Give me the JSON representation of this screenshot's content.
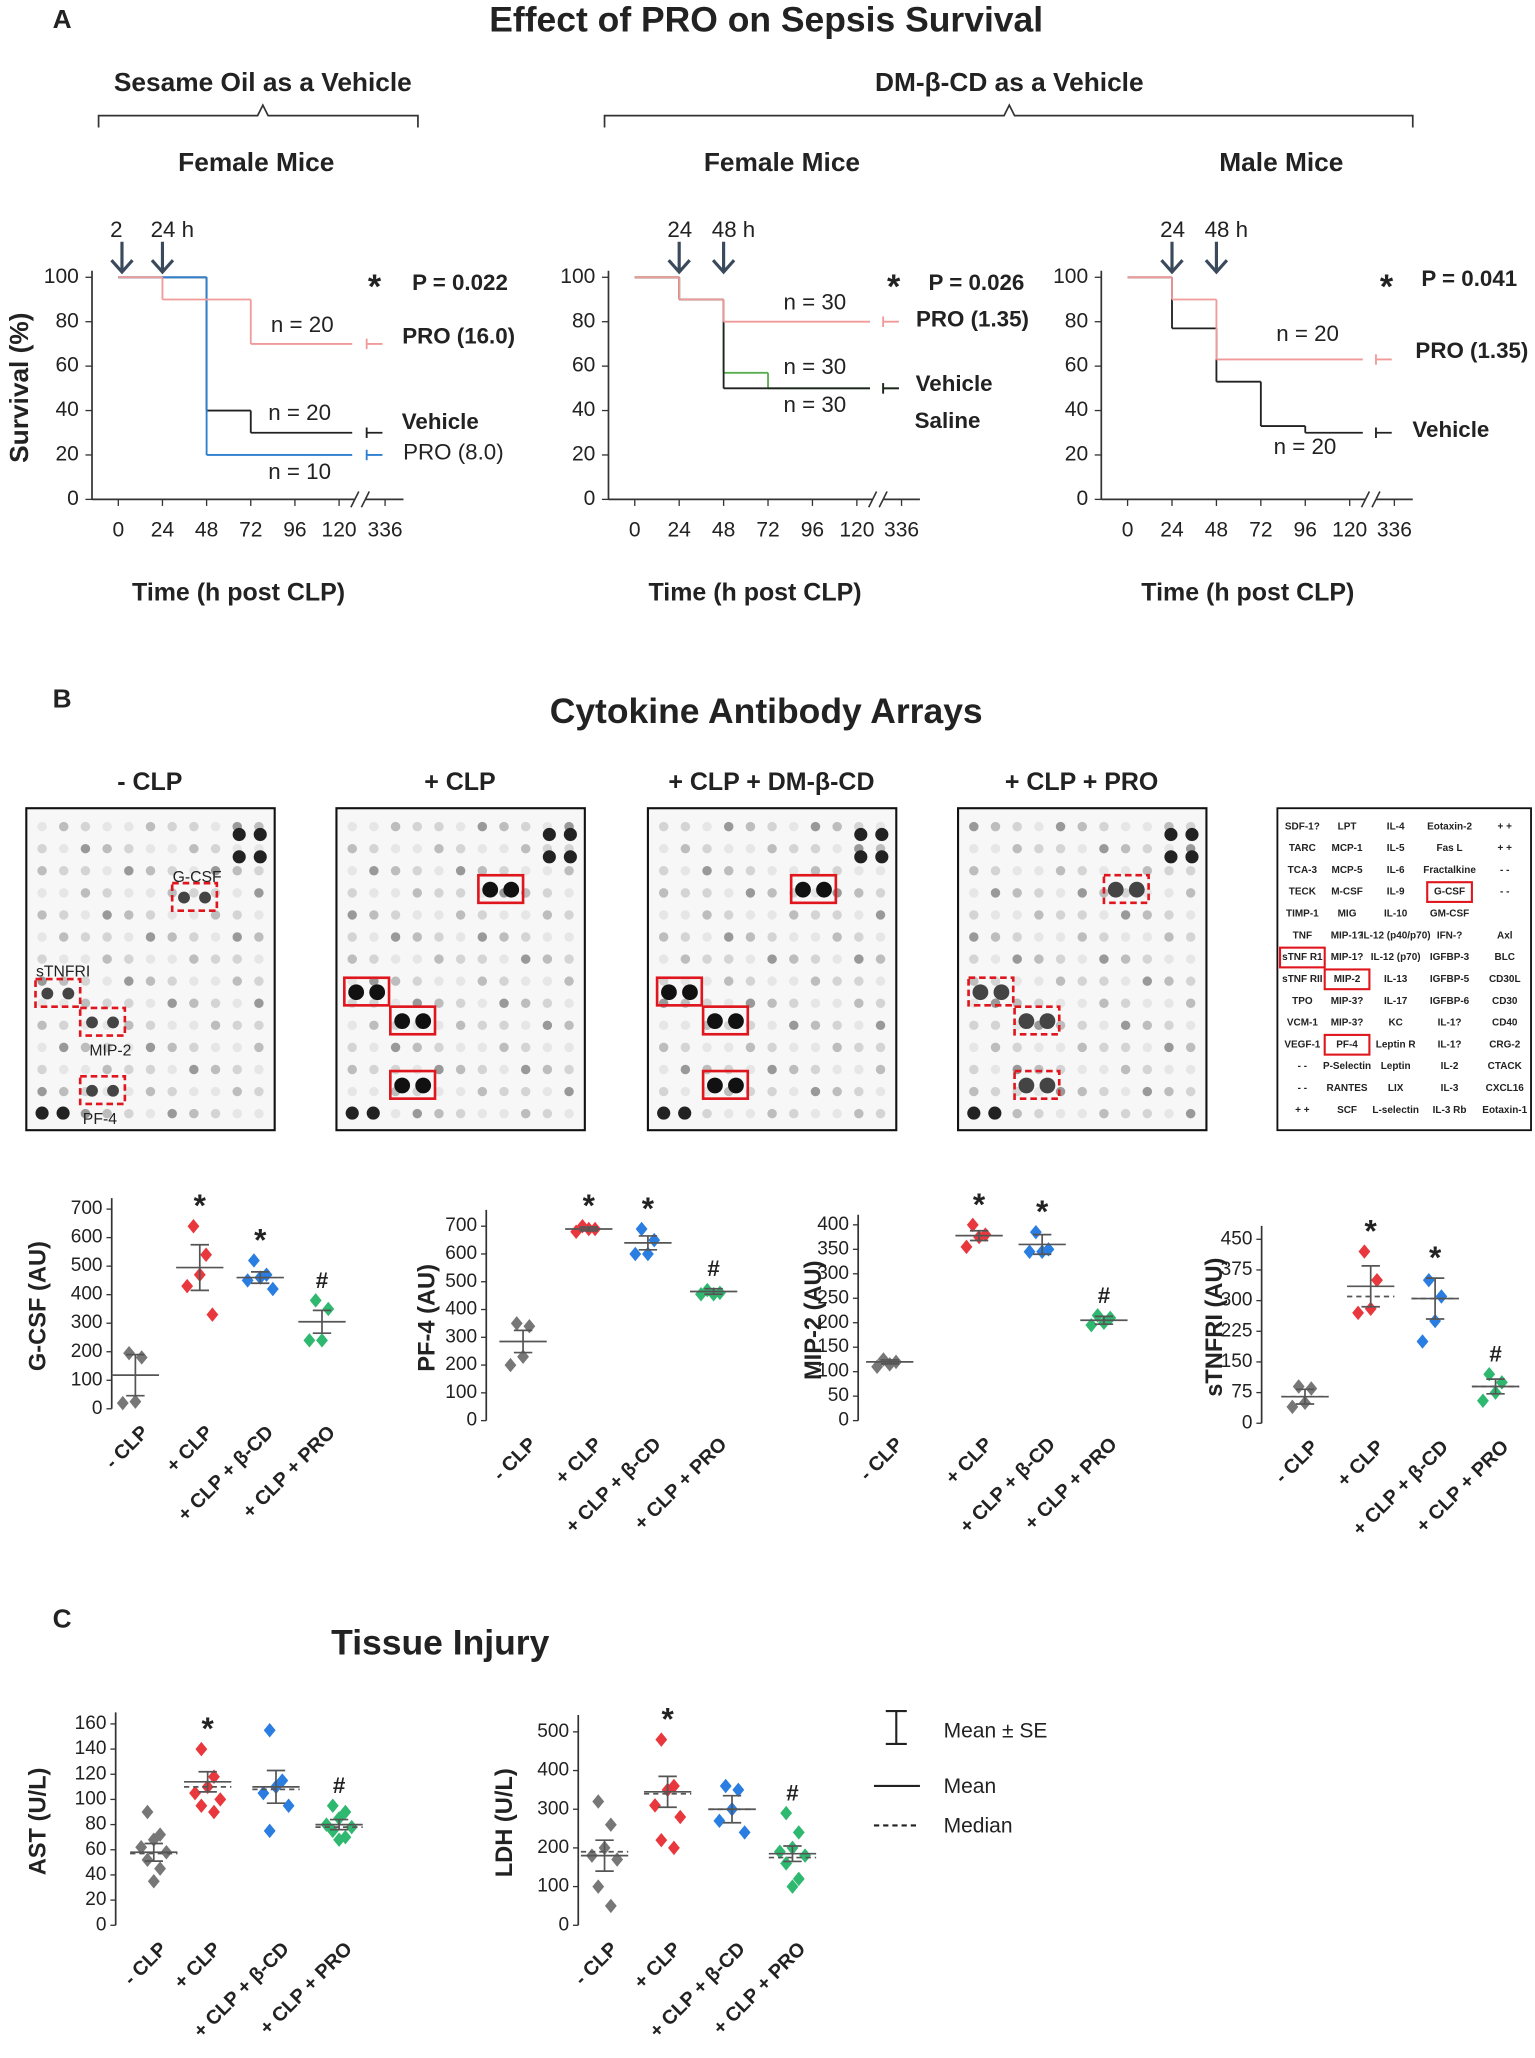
{
  "panel_a": {
    "label": "A",
    "title": "Effect of PRO on Sepsis Survival",
    "groups": [
      "Sesame Oil as a Vehicle",
      "DM-β-CD as a Vehicle"
    ]
  },
  "panel_b": {
    "label": "B",
    "title": "Cytokine Antibody Arrays",
    "arrays": [
      {
        "title": "- CLP",
        "labels": [
          "G-CSF",
          "sTNFRI",
          "MIP-2",
          "PF-4"
        ]
      },
      {
        "title": "+ CLP"
      },
      {
        "title": "+ CLP + DM-β-CD"
      },
      {
        "title": "+ CLP + PRO"
      }
    ],
    "map": {
      "rows": [
        [
          "SDF-1?",
          "LPT",
          "IL-4",
          "Eotaxin-2",
          "+ +"
        ],
        [
          "TARC",
          "MCP-1",
          "IL-5",
          "Fas L",
          "+ +"
        ],
        [
          "TCA-3",
          "MCP-5",
          "IL-6",
          "Fractalkine",
          "- -"
        ],
        [
          "TECK",
          "M-CSF",
          "IL-9",
          {
            "text": "G-CSF",
            "boxed": true
          },
          "- -"
        ],
        [
          "TIMP-1",
          "MIG",
          "IL-10",
          "GM-CSF"
        ],
        [
          "TNF",
          "MIP-1?",
          "IL-12 (p40/p70)",
          "IFN-?",
          "Axl"
        ],
        [
          {
            "text": "sTNF R1",
            "boxed": true
          },
          "MIP-1?",
          "IL-12 (p70)",
          "IGFBP-3",
          "BLC"
        ],
        [
          "sTNF RII",
          {
            "text": "MIP-2",
            "boxed": true
          },
          "IL-13",
          "IGFBP-5",
          "CD30L"
        ],
        [
          "TPO",
          "MIP-3?",
          "IL-17",
          "IGFBP-6",
          "CD30"
        ],
        [
          "VCM-1",
          "MIP-3?",
          "KC",
          "IL-1?",
          "CD40"
        ],
        [
          "VEGF-1",
          {
            "text": "PF-4",
            "boxed": true
          },
          "Leptin R",
          "IL-1?",
          "CRG-2"
        ],
        [
          "- -",
          "P-Selectin",
          "Leptin",
          "IL-2",
          "CTACK"
        ],
        [
          "- -",
          "RANTES",
          "LIX",
          "IL-3",
          "CXCL16"
        ],
        [
          "+ +",
          "SCF",
          "L-selectin",
          "IL-3 Rb",
          "Eotaxin-1"
        ]
      ]
    }
  },
  "panel_c": {
    "label": "C",
    "title": "Tissue Injury",
    "legend": [
      "Mean ± SE",
      "Mean",
      "Median"
    ]
  },
  "chart_data": [
    {
      "type": "survival",
      "subtitle": "Female Mice",
      "ylabel": "Survival (%)",
      "xlabel": "Time (h post CLP)",
      "xlim": [
        0,
        336
      ],
      "xticks": [
        0,
        24,
        48,
        72,
        96,
        120,
        336
      ],
      "axis_break": true,
      "ylim": [
        0,
        100
      ],
      "yticks": [
        0,
        20,
        40,
        60,
        80,
        100
      ],
      "arrows": [
        {
          "value": 2,
          "label": "2"
        },
        {
          "value": 24,
          "label": "24 h"
        }
      ],
      "series": [
        {
          "color": "#222222",
          "x": [
            0,
            48,
            72,
            336
          ],
          "values": [
            100,
            40,
            30,
            30
          ]
        },
        {
          "color": "#2f7fd1",
          "x": [
            0,
            48,
            336
          ],
          "values": [
            100,
            20,
            20
          ]
        },
        {
          "color": "#f19a9a",
          "x": [
            0,
            24,
            72,
            336
          ],
          "values": [
            100,
            90,
            70,
            70
          ]
        }
      ],
      "annotations": [
        {
          "text": "*",
          "color": "#c8102e"
        },
        {
          "text": "P = 0.022",
          "color": "#c8102e"
        },
        {
          "text": "n = 20",
          "color": "#c8102e"
        },
        {
          "text": "PRO (16.0)",
          "color": "#c8102e"
        },
        {
          "text": "n = 20",
          "color": "#222222"
        },
        {
          "text": "Vehicle",
          "color": "#222222"
        },
        {
          "text": "n = 10",
          "color": "#2f7fd1"
        },
        {
          "text": "PRO (8.0)",
          "color": "#2f7fd1"
        }
      ]
    },
    {
      "type": "survival",
      "subtitle": "Female Mice",
      "xlabel": "Time (h post CLP)",
      "xlim": [
        0,
        336
      ],
      "xticks": [
        0,
        24,
        48,
        72,
        96,
        120,
        336
      ],
      "axis_break": true,
      "ylim": [
        0,
        100
      ],
      "yticks": [
        0,
        20,
        40,
        60,
        80,
        100
      ],
      "arrows": [
        {
          "value": 24,
          "label": "24"
        },
        {
          "value": 48,
          "label": "48 h"
        }
      ],
      "series": [
        {
          "color": "#5aae4f",
          "x": [
            0,
            24,
            48,
            72,
            336
          ],
          "values": [
            100,
            90,
            57,
            50,
            50
          ]
        },
        {
          "color": "#222222",
          "x": [
            0,
            24,
            48,
            336
          ],
          "values": [
            100,
            90,
            50,
            50
          ]
        },
        {
          "color": "#f19a9a",
          "x": [
            0,
            24,
            48,
            336
          ],
          "values": [
            100,
            90,
            80,
            80
          ]
        }
      ],
      "annotations": [
        {
          "text": "*",
          "color": "#c8102e"
        },
        {
          "text": "P = 0.026",
          "color": "#c8102e"
        },
        {
          "text": "n = 30",
          "color": "#c8102e"
        },
        {
          "text": "PRO (1.35)",
          "color": "#c8102e"
        },
        {
          "text": "n = 30",
          "color": "#222222"
        },
        {
          "text": "Vehicle",
          "color": "#222222"
        },
        {
          "text": "n = 30",
          "color": "#2eb84a"
        },
        {
          "text": "Saline",
          "color": "#2eb84a"
        }
      ]
    },
    {
      "type": "survival",
      "subtitle": "Male Mice",
      "xlabel": "Time (h post CLP)",
      "xlim": [
        0,
        336
      ],
      "xticks": [
        0,
        24,
        48,
        72,
        96,
        120,
        336
      ],
      "axis_break": true,
      "ylim": [
        0,
        100
      ],
      "yticks": [
        0,
        20,
        40,
        60,
        80,
        100
      ],
      "arrows": [
        {
          "value": 24,
          "label": "24"
        },
        {
          "value": 48,
          "label": "48 h"
        }
      ],
      "series": [
        {
          "color": "#222222",
          "x": [
            0,
            24,
            48,
            72,
            96,
            336
          ],
          "values": [
            100,
            77,
            53,
            33,
            30,
            30
          ]
        },
        {
          "color": "#f19a9a",
          "x": [
            0,
            24,
            48,
            336
          ],
          "values": [
            100,
            90,
            63,
            63
          ]
        }
      ],
      "annotations": [
        {
          "text": "*",
          "color": "#c8102e"
        },
        {
          "text": "P = 0.041",
          "color": "#c8102e"
        },
        {
          "text": "n = 20",
          "color": "#c8102e"
        },
        {
          "text": "PRO (1.35)",
          "color": "#c8102e"
        },
        {
          "text": "Vehicle",
          "color": "#222222"
        },
        {
          "text": "n = 20",
          "color": "#222222"
        }
      ]
    },
    {
      "type": "dot",
      "ylabel": "G-CSF (AU)",
      "categories": [
        "- CLP",
        "+ CLP",
        "+ CLP + β-CD",
        "+ CLP + PRO"
      ],
      "colors": [
        "#777777",
        "#e8383d",
        "#2a7de1",
        "#2fb870"
      ],
      "ylim": [
        0,
        720
      ],
      "yticks": [
        0,
        100,
        200,
        300,
        400,
        500,
        600,
        700
      ],
      "points": [
        [
          195,
          180,
          25,
          20
        ],
        [
          640,
          540,
          470,
          430,
          330
        ],
        [
          520,
          470,
          460,
          450,
          420
        ],
        [
          380,
          350,
          240,
          240
        ]
      ],
      "mean": [
        118,
        495,
        460,
        305
      ],
      "se": [
        72,
        80,
        20,
        40
      ],
      "marks": [
        null,
        "*",
        "*",
        "#"
      ]
    },
    {
      "type": "dot",
      "ylabel": "PF-4 (AU)",
      "categories": [
        "- CLP",
        "+ CLP",
        "+ CLP + β-CD",
        "+ CLP + PRO"
      ],
      "colors": [
        "#777777",
        "#e8383d",
        "#2a7de1",
        "#2fb870"
      ],
      "ylim": [
        0,
        740
      ],
      "yticks": [
        0,
        100,
        200,
        300,
        400,
        500,
        600,
        700
      ],
      "points": [
        [
          350,
          340,
          230,
          200
        ],
        [
          700,
          690,
          690,
          680
        ],
        [
          690,
          650,
          600,
          600
        ],
        [
          470,
          460,
          455,
          455
        ]
      ],
      "mean": [
        285,
        690,
        640,
        465
      ],
      "se": [
        40,
        7,
        25,
        10
      ],
      "marks": [
        null,
        "*",
        "*",
        "#"
      ]
    },
    {
      "type": "dot",
      "ylabel": "MIP-2 (AU)",
      "categories": [
        "- CLP",
        "+ CLP",
        "+ CLP + β-CD",
        "+ CLP + PRO"
      ],
      "colors": [
        "#777777",
        "#e8383d",
        "#2a7de1",
        "#2fb870"
      ],
      "ylim": [
        0,
        410
      ],
      "yticks": [
        0,
        50,
        100,
        150,
        200,
        250,
        300,
        350,
        400
      ],
      "points": [
        [
          125,
          120,
          115,
          110
        ],
        [
          400,
          380,
          375,
          355
        ],
        [
          385,
          350,
          345,
          345
        ],
        [
          215,
          210,
          200,
          195
        ]
      ],
      "mean": [
        120,
        378,
        360,
        205
      ],
      "se": [
        4,
        10,
        20,
        8
      ],
      "marks": [
        null,
        "*",
        "*",
        "#"
      ]
    },
    {
      "type": "dot",
      "ylabel": "sTNFRI (AU)",
      "categories": [
        "- CLP",
        "+ CLP",
        "+ CLP + β-CD",
        "+ CLP + PRO"
      ],
      "colors": [
        "#777777",
        "#e8383d",
        "#2a7de1",
        "#2fb870"
      ],
      "ylim": [
        0,
        470
      ],
      "yticks": [
        0,
        75,
        150,
        225,
        300,
        375,
        450
      ],
      "points": [
        [
          90,
          85,
          50,
          40
        ],
        [
          420,
          350,
          280,
          270
        ],
        [
          350,
          310,
          250,
          200
        ],
        [
          120,
          100,
          75,
          55
        ]
      ],
      "mean": [
        65,
        335,
        305,
        90
      ],
      "se": [
        18,
        50,
        50,
        18
      ],
      "median": [
        65,
        310,
        305,
        90
      ],
      "marks": [
        null,
        "*",
        "*",
        "#"
      ]
    },
    {
      "type": "dot",
      "ylabel": "AST (U/L)",
      "categories": [
        "- CLP",
        "+ CLP",
        "+ CLP + β-CD",
        "+ CLP + PRO"
      ],
      "colors": [
        "#777777",
        "#e8383d",
        "#2a7de1",
        "#2fb870"
      ],
      "ylim": [
        0,
        165
      ],
      "yticks": [
        0,
        20,
        40,
        60,
        80,
        100,
        120,
        140,
        160
      ],
      "points": [
        [
          90,
          72,
          68,
          62,
          58,
          52,
          45,
          35
        ],
        [
          140,
          118,
          110,
          105,
          100,
          95,
          90
        ],
        [
          155,
          115,
          110,
          105,
          95,
          75
        ],
        [
          95,
          90,
          85,
          80,
          78,
          75,
          70,
          68
        ]
      ],
      "mean": [
        58,
        114,
        110,
        80
      ],
      "se": [
        7,
        8,
        13,
        4
      ],
      "median": [
        57,
        110,
        108,
        78
      ],
      "marks": [
        null,
        "*",
        null,
        "#"
      ]
    },
    {
      "type": "dot",
      "ylabel": "LDH (U/L)",
      "categories": [
        "- CLP",
        "+ CLP",
        "+ CLP + β-CD",
        "+ CLP + PRO"
      ],
      "colors": [
        "#777777",
        "#e8383d",
        "#2a7de1",
        "#2fb870"
      ],
      "ylim": [
        0,
        530
      ],
      "yticks": [
        0,
        100,
        200,
        300,
        400,
        500
      ],
      "points": [
        [
          320,
          260,
          200,
          180,
          170,
          100,
          50
        ],
        [
          480,
          360,
          350,
          310,
          280,
          220,
          200
        ],
        [
          360,
          350,
          300,
          270,
          240
        ],
        [
          290,
          240,
          200,
          190,
          180,
          160,
          120,
          100
        ]
      ],
      "mean": [
        180,
        345,
        300,
        185
      ],
      "se": [
        40,
        40,
        35,
        20
      ],
      "median": [
        190,
        340,
        300,
        175
      ],
      "marks": [
        null,
        "*",
        null,
        "#"
      ]
    }
  ]
}
